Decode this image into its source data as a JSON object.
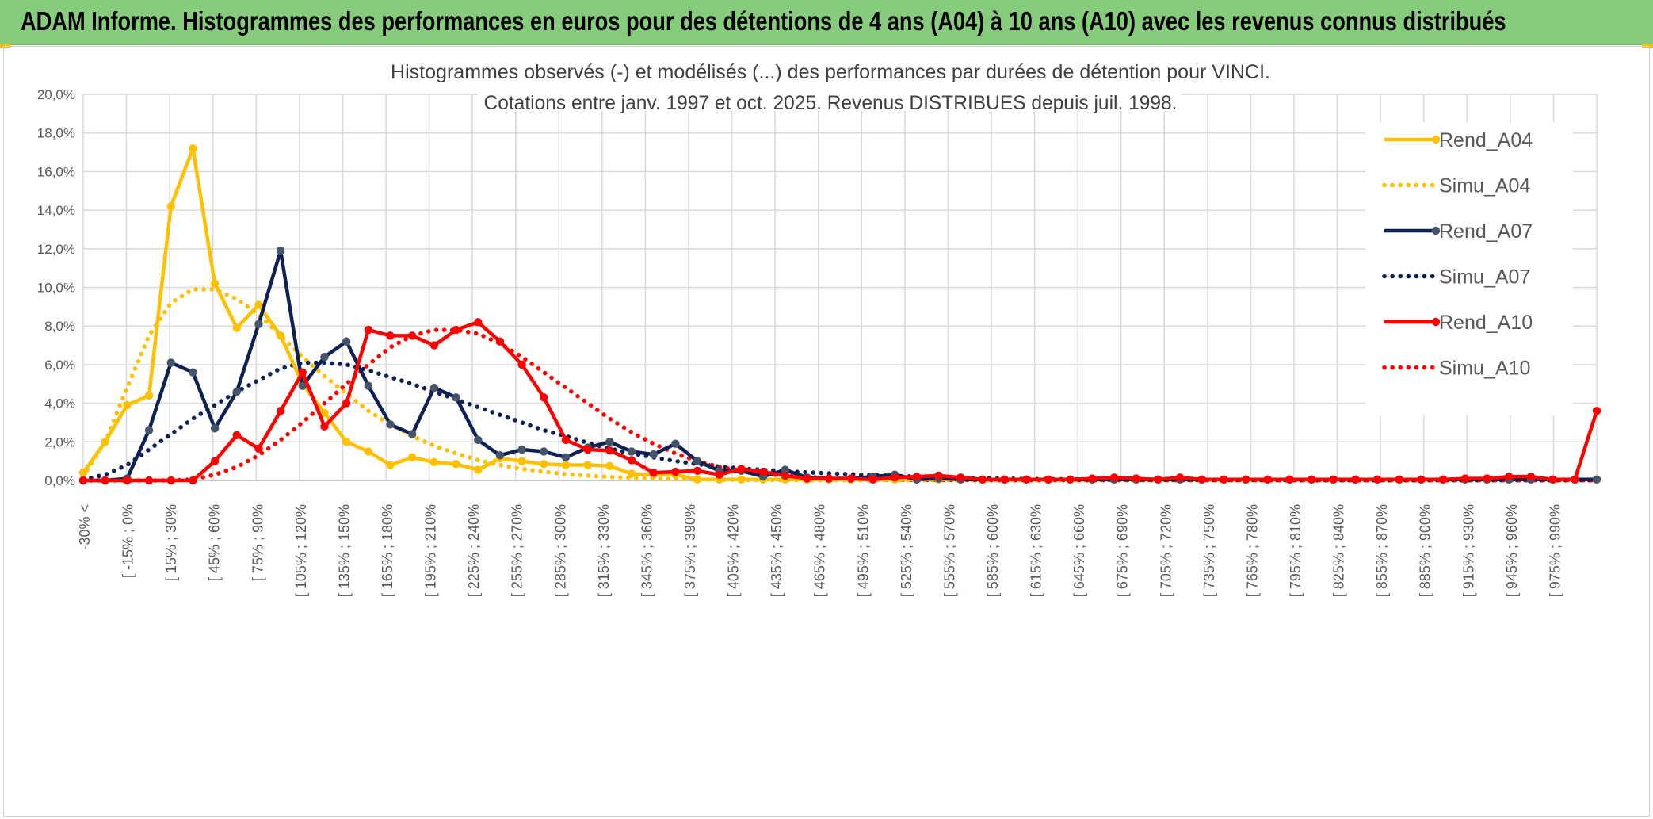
{
  "banner": {
    "title": "ADAM Informe. Histogrammes des performances en euros pour des détentions de 4 ans (A04) à 10 ans (A10) avec les revenus connus distribués"
  },
  "chart_data": {
    "type": "line",
    "title": "Histogrammes observés (-) et modélisés (...) des performances par durées de détention pour VINCI.",
    "subtitle": "Cotations entre janv. 1997 et oct. 2025. Revenus DISTRIBUES depuis juil. 1998.",
    "xlabel": "",
    "ylabel": "",
    "ylim": [
      0,
      20
    ],
    "y_ticks": [
      "0,0%",
      "2,0%",
      "4,0%",
      "6,0%",
      "8,0%",
      "10,0%",
      "12,0%",
      "14,0%",
      "16,0%",
      "18,0%",
      "20,0%"
    ],
    "x_tick_labels": [
      "-30% <",
      "[ -15% ; 0%",
      "[ 15% ; 30%",
      "[ 45% ; 60%",
      "[ 75% ; 90%",
      "[ 105% ; 120%",
      "[ 135% ; 150%",
      "[ 165% ; 180%",
      "[ 195% ; 210%",
      "[ 225% ; 240%",
      "[ 255% ; 270%",
      "[ 285% ; 300%",
      "[ 315% ; 330%",
      "[ 345% ; 360%",
      "[ 375% ; 390%",
      "[ 405% ; 420%",
      "[ 435% ; 450%",
      "[ 465% ; 480%",
      "[ 495% ; 510%",
      "[ 525% ; 540%",
      "[ 555% ; 570%",
      "[ 585% ; 600%",
      "[ 615% ; 630%",
      "[ 645% ; 660%",
      "[ 675% ; 690%",
      "[ 705% ; 720%",
      "[ 735% ; 750%",
      "[ 765% ; 780%",
      "[ 795% ; 810%",
      "[ 825% ; 840%",
      "[ 855% ; 870%",
      "[ 885% ; 900%",
      "[ 915% ; 930%",
      "[ 945% ; 960%",
      "[ 975% ; 990%"
    ],
    "n_points": 70,
    "legend_position": "right",
    "grid": true,
    "series": [
      {
        "name": "Rend_A04",
        "style": "solid",
        "color": "#ffc000",
        "values": [
          0.4,
          2.0,
          3.9,
          4.4,
          14.2,
          17.2,
          10.2,
          7.9,
          9.1,
          7.5,
          5.0,
          3.5,
          2.0,
          1.5,
          0.8,
          1.2,
          0.95,
          0.85,
          0.55,
          1.15,
          1.0,
          0.85,
          0.8,
          0.8,
          0.75,
          0.35,
          0.3,
          0.3,
          0.05,
          0.05,
          0.05,
          0.05,
          0.05,
          0.05,
          0.05,
          0.05,
          0.05,
          0.05,
          0.05,
          0.05,
          0.05,
          0.05,
          0.05,
          0.05,
          0.05,
          0.05,
          0.05,
          0.05,
          0.05,
          0.05,
          0.05,
          0.05,
          0.05,
          0.05,
          0.05,
          0.05,
          0.05,
          0.05,
          0.05,
          0.05,
          0.05,
          0.05,
          0.05,
          0.05,
          0.05,
          0.05,
          0.05,
          0.05,
          0.05,
          0.05
        ]
      },
      {
        "name": "Simu_A04",
        "style": "dotted",
        "color": "#ffc000",
        "values": [
          0.2,
          2.0,
          4.8,
          7.5,
          9.2,
          9.9,
          9.9,
          9.4,
          8.6,
          7.5,
          6.4,
          5.4,
          4.5,
          3.6,
          2.9,
          2.3,
          1.8,
          1.4,
          1.05,
          0.8,
          0.6,
          0.45,
          0.33,
          0.25,
          0.18,
          0.13,
          0.1,
          0.07,
          0.05,
          0.04,
          0.03,
          0.02,
          0.02,
          0.01,
          0.01,
          0.01,
          0.01,
          0.01,
          0.01,
          0.01,
          0.01,
          0.01,
          0.01,
          0.01,
          0.01,
          0.01,
          0.01,
          0.01,
          0.01,
          0.01,
          0.01,
          0.01,
          0.01,
          0.01,
          0.01,
          0.01,
          0.01,
          0.01,
          0.01,
          0.01,
          0.01,
          0.01,
          0.01,
          0.01,
          0.01,
          0.01,
          0.01,
          0.01,
          0.01,
          0.01
        ]
      },
      {
        "name": "Rend_A07",
        "style": "solid",
        "color": "#0f2154",
        "values": [
          0,
          0,
          0.1,
          2.6,
          6.1,
          5.6,
          2.7,
          4.6,
          8.1,
          11.9,
          4.9,
          6.4,
          7.2,
          4.9,
          2.9,
          2.4,
          4.8,
          4.3,
          2.1,
          1.3,
          1.6,
          1.5,
          1.2,
          1.7,
          2.0,
          1.5,
          1.35,
          1.9,
          1.0,
          0.5,
          0.5,
          0.2,
          0.55,
          0.15,
          0.1,
          0.1,
          0.2,
          0.3,
          0.05,
          0.1,
          0.05,
          0.05,
          0.05,
          0.05,
          0.05,
          0.05,
          0.05,
          0.05,
          0.05,
          0.05,
          0.05,
          0.05,
          0.05,
          0.05,
          0.05,
          0.05,
          0.05,
          0.05,
          0.05,
          0.05,
          0.05,
          0.05,
          0.05,
          0.05,
          0.05,
          0.05,
          0.05,
          0.05,
          0.05,
          0.05
        ]
      },
      {
        "name": "Simu_A07",
        "style": "dotted",
        "color": "#0f2154",
        "values": [
          0.05,
          0.3,
          0.8,
          1.6,
          2.4,
          3.2,
          3.9,
          4.6,
          5.2,
          5.8,
          6.1,
          6.1,
          6.0,
          5.7,
          5.35,
          5.0,
          4.6,
          4.2,
          3.8,
          3.4,
          3.0,
          2.6,
          2.3,
          1.95,
          1.65,
          1.4,
          1.2,
          1.0,
          0.85,
          0.72,
          0.62,
          0.55,
          0.48,
          0.42,
          0.37,
          0.32,
          0.28,
          0.24,
          0.2,
          0.17,
          0.14,
          0.12,
          0.1,
          0.08,
          0.07,
          0.06,
          0.05,
          0.04,
          0.04,
          0.03,
          0.03,
          0.02,
          0.02,
          0.02,
          0.02,
          0.01,
          0.01,
          0.01,
          0.01,
          0.01,
          0.01,
          0.01,
          0.01,
          0.01,
          0.01,
          0.01,
          0.01,
          0.01,
          0.01,
          0.01
        ]
      },
      {
        "name": "Rend_A10",
        "style": "solid",
        "color": "#ff0000",
        "values": [
          0,
          0,
          0,
          0,
          0,
          0,
          1.0,
          2.35,
          1.65,
          3.6,
          5.6,
          2.8,
          4.0,
          7.8,
          7.5,
          7.5,
          7.0,
          7.8,
          8.2,
          7.2,
          6.0,
          4.3,
          2.1,
          1.6,
          1.55,
          1.05,
          0.4,
          0.45,
          0.5,
          0.3,
          0.6,
          0.45,
          0.25,
          0.1,
          0.1,
          0.1,
          0.05,
          0.15,
          0.2,
          0.25,
          0.15,
          0.05,
          0.05,
          0.05,
          0.05,
          0.05,
          0.1,
          0.15,
          0.1,
          0.05,
          0.15,
          0.05,
          0.05,
          0.05,
          0.05,
          0.05,
          0.05,
          0.05,
          0.05,
          0.05,
          0.05,
          0.05,
          0.05,
          0.1,
          0.1,
          0.2,
          0.2,
          0.05,
          0.05,
          3.6
        ]
      },
      {
        "name": "Simu_A10",
        "style": "dotted",
        "color": "#ff0000",
        "values": [
          0,
          0,
          0,
          0,
          0,
          0.05,
          0.3,
          0.7,
          1.3,
          2.1,
          3.0,
          4.0,
          5.0,
          6.0,
          6.9,
          7.5,
          7.8,
          7.8,
          7.6,
          7.1,
          6.4,
          5.6,
          4.8,
          4.0,
          3.2,
          2.5,
          1.9,
          1.4,
          1.0,
          0.7,
          0.5,
          0.35,
          0.25,
          0.18,
          0.12,
          0.08,
          0.06,
          0.04,
          0.03,
          0.02,
          0.02,
          0.01,
          0.01,
          0.01,
          0.01,
          0.01,
          0.01,
          0.01,
          0.01,
          0.01,
          0.01,
          0.01,
          0.01,
          0.01,
          0.01,
          0.01,
          0.01,
          0.01,
          0.01,
          0.01,
          0.01,
          0.01,
          0.01,
          0.01,
          0.01,
          0.01,
          0.01,
          0.01,
          0.01,
          0.01
        ]
      }
    ]
  }
}
